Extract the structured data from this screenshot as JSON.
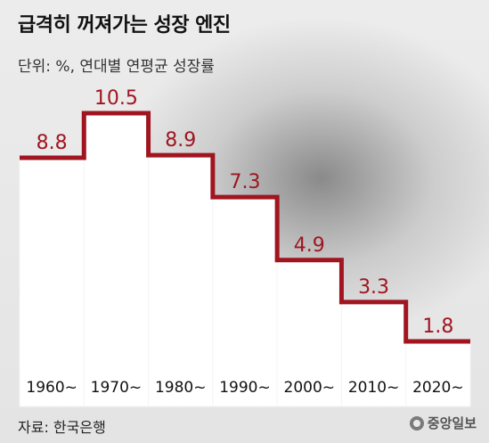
{
  "header": {
    "title": "급격히 꺼져가는 성장 엔진",
    "subtitle": "단위: %, 연대별 연평균 성장률"
  },
  "footer": {
    "source": "자료: 한국은행",
    "logo_text": "중앙일보"
  },
  "colors": {
    "line": "#a01520",
    "value_label": "#a01520",
    "bar_fill": "#ffffff",
    "tick_label": "#111111"
  },
  "chart_data": {
    "type": "bar",
    "style": "step-line over white columns",
    "categories": [
      "1960~",
      "1970~",
      "1980~",
      "1990~",
      "2000~",
      "2010~",
      "2020~"
    ],
    "values": [
      8.8,
      10.5,
      8.9,
      7.3,
      4.9,
      3.3,
      1.8
    ],
    "data_labels": [
      "8.8",
      "10.5",
      "8.9",
      "7.3",
      "4.9",
      "3.3",
      "1.8"
    ],
    "title": "급격히 꺼져가는 성장 엔진",
    "subtitle": "단위: %, 연대별 연평균 성장률",
    "unit": "%",
    "grid": false,
    "legend": "none"
  }
}
